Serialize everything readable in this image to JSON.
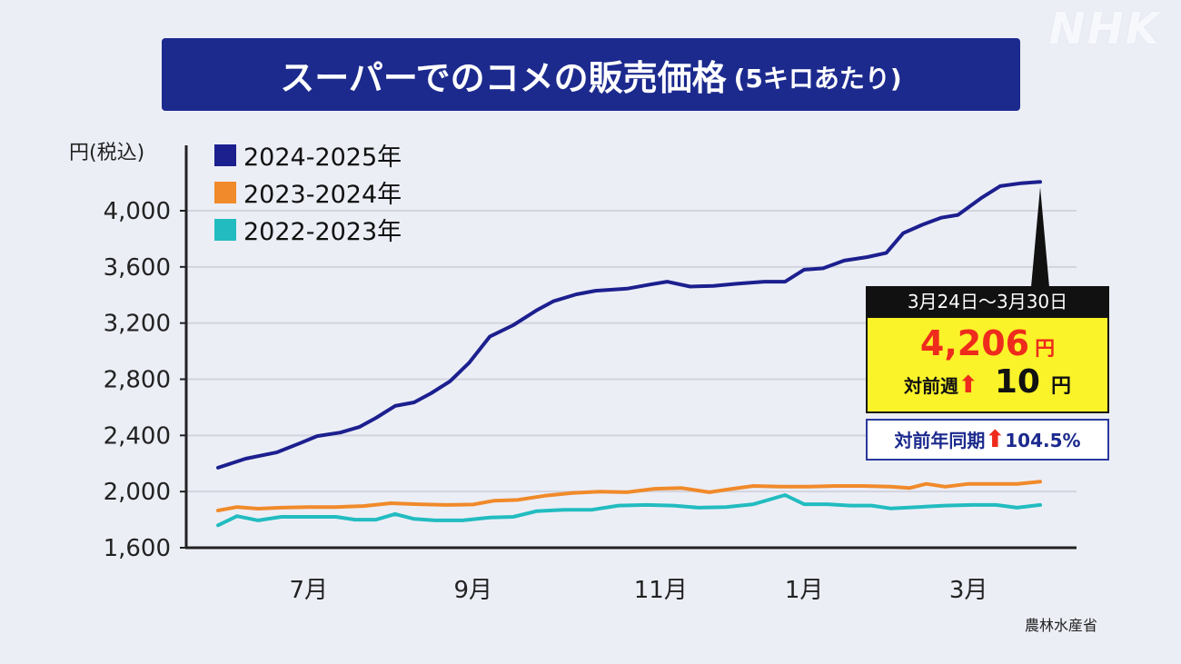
{
  "logo": "NHK",
  "title": {
    "main": "スーパーでのコメの販売価格",
    "sub": "(5キロあたり)"
  },
  "source": "農林水産省",
  "callout": {
    "period": "3月24日～3月30日",
    "price": "4,206",
    "yen": "円",
    "week_label": "対前週",
    "week_change": "10",
    "year_label": "対前年同期",
    "year_change": "104.5%",
    "arrow": "⬆"
  },
  "chart_data": {
    "type": "line",
    "title": "スーパーでのコメの販売価格 (5キロあたり)",
    "ylabel": "円(税込)",
    "xlabel": "",
    "ylim": [
      1600,
      4200
    ],
    "yticks": [
      1600,
      2000,
      2400,
      2800,
      3200,
      3600,
      4000
    ],
    "ytick_labels": [
      "1,600",
      "2,000",
      "2,400",
      "2,800",
      "3,200",
      "3,600",
      "4,000"
    ],
    "xlim": [
      0,
      39
    ],
    "xticks": [
      {
        "label": "7月",
        "week": 4.3
      },
      {
        "label": "9月",
        "week": 12.1
      },
      {
        "label": "11月",
        "week": 21
      },
      {
        "label": "1月",
        "week": 27.8
      },
      {
        "label": "3月",
        "week": 35.6
      }
    ],
    "grid": true,
    "legend_position": "top-left",
    "series": [
      {
        "name": "2024-2025年",
        "color": "#1c1f8e",
        "points": [
          [
            0,
            2170
          ],
          [
            1.3,
            2234
          ],
          [
            2.8,
            2280
          ],
          [
            3.9,
            2345
          ],
          [
            4.7,
            2395
          ],
          [
            5.8,
            2420
          ],
          [
            6.7,
            2460
          ],
          [
            7.5,
            2525
          ],
          [
            8.4,
            2610
          ],
          [
            9.3,
            2635
          ],
          [
            10.1,
            2700
          ],
          [
            11,
            2785
          ],
          [
            11.9,
            2915
          ],
          [
            12.9,
            3105
          ],
          [
            14,
            3185
          ],
          [
            15.1,
            3290
          ],
          [
            15.9,
            3355
          ],
          [
            17,
            3405
          ],
          [
            17.9,
            3430
          ],
          [
            19.4,
            3445
          ],
          [
            20.5,
            3475
          ],
          [
            21.3,
            3495
          ],
          [
            22.4,
            3460
          ],
          [
            23.5,
            3465
          ],
          [
            24.6,
            3480
          ],
          [
            25.9,
            3495
          ],
          [
            26.9,
            3495
          ],
          [
            27.8,
            3580
          ],
          [
            28.7,
            3590
          ],
          [
            29.7,
            3645
          ],
          [
            30.8,
            3670
          ],
          [
            31.7,
            3700
          ],
          [
            32.5,
            3840
          ],
          [
            33.4,
            3900
          ],
          [
            34.3,
            3950
          ],
          [
            35.1,
            3970
          ],
          [
            36.2,
            4090
          ],
          [
            37.1,
            4175
          ],
          [
            38.1,
            4196
          ],
          [
            39,
            4206
          ]
        ]
      },
      {
        "name": "2023-2024年",
        "color": "#f08a2a",
        "points": [
          [
            0,
            1865
          ],
          [
            0.9,
            1890
          ],
          [
            1.9,
            1878
          ],
          [
            3,
            1885
          ],
          [
            4.3,
            1890
          ],
          [
            5.6,
            1890
          ],
          [
            6.9,
            1897
          ],
          [
            8.2,
            1917
          ],
          [
            9.5,
            1910
          ],
          [
            10.8,
            1905
          ],
          [
            12.1,
            1908
          ],
          [
            13.1,
            1935
          ],
          [
            14.2,
            1940
          ],
          [
            15.5,
            1970
          ],
          [
            16.8,
            1990
          ],
          [
            18.1,
            2000
          ],
          [
            19.4,
            1995
          ],
          [
            20.7,
            2020
          ],
          [
            22,
            2025
          ],
          [
            23.3,
            1995
          ],
          [
            24.4,
            2020
          ],
          [
            25.4,
            2040
          ],
          [
            26.7,
            2035
          ],
          [
            28,
            2035
          ],
          [
            29.3,
            2040
          ],
          [
            30.6,
            2040
          ],
          [
            31.9,
            2035
          ],
          [
            32.8,
            2025
          ],
          [
            33.6,
            2055
          ],
          [
            34.5,
            2035
          ],
          [
            35.6,
            2055
          ],
          [
            36.6,
            2055
          ],
          [
            37.9,
            2055
          ],
          [
            39,
            2070
          ]
        ]
      },
      {
        "name": "2022-2023年",
        "color": "#22bcc0",
        "points": [
          [
            0,
            1760
          ],
          [
            0.9,
            1825
          ],
          [
            1.9,
            1795
          ],
          [
            3,
            1820
          ],
          [
            4.3,
            1820
          ],
          [
            5.6,
            1820
          ],
          [
            6.5,
            1800
          ],
          [
            7.5,
            1800
          ],
          [
            8.4,
            1840
          ],
          [
            9.3,
            1805
          ],
          [
            10.3,
            1795
          ],
          [
            11.6,
            1795
          ],
          [
            12.9,
            1815
          ],
          [
            14,
            1820
          ],
          [
            15.1,
            1860
          ],
          [
            16.4,
            1870
          ],
          [
            17.7,
            1870
          ],
          [
            19,
            1900
          ],
          [
            20.3,
            1905
          ],
          [
            21.6,
            1900
          ],
          [
            22.8,
            1885
          ],
          [
            24.1,
            1890
          ],
          [
            25.4,
            1910
          ],
          [
            26.9,
            1975
          ],
          [
            27.8,
            1910
          ],
          [
            28.9,
            1910
          ],
          [
            30,
            1900
          ],
          [
            31,
            1900
          ],
          [
            31.9,
            1880
          ],
          [
            33.2,
            1890
          ],
          [
            34.5,
            1900
          ],
          [
            35.8,
            1905
          ],
          [
            36.9,
            1905
          ],
          [
            37.9,
            1885
          ],
          [
            39,
            1905
          ]
        ]
      }
    ]
  }
}
